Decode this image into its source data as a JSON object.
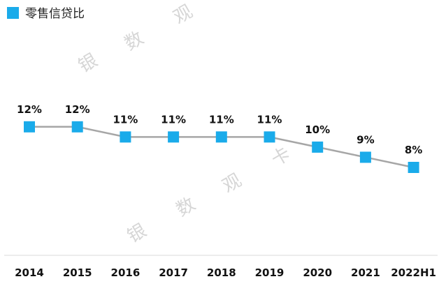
{
  "legend": {
    "label": "零售信贷比"
  },
  "watermark": {
    "chars": [
      "银",
      "数",
      "观",
      "卡"
    ]
  },
  "colors": {
    "marker": "#1aabea",
    "line": "#a6a6a6",
    "axis": "#d9d9d9"
  },
  "chart_data": {
    "type": "line",
    "title": "",
    "xlabel": "",
    "ylabel": "",
    "categories": [
      "2014",
      "2015",
      "2016",
      "2017",
      "2018",
      "2019",
      "2020",
      "2021",
      "2022H1"
    ],
    "series": [
      {
        "name": "零售信贷比",
        "values": [
          0.12,
          0.12,
          0.11,
          0.11,
          0.11,
          0.11,
          0.1,
          0.09,
          0.08
        ],
        "labels": [
          "12%",
          "12%",
          "11%",
          "11%",
          "11%",
          "11%",
          "10%",
          "9%",
          "8%"
        ]
      }
    ],
    "ylim": [
      0,
      0.18
    ],
    "grid": false,
    "legend_position": "top-left"
  }
}
